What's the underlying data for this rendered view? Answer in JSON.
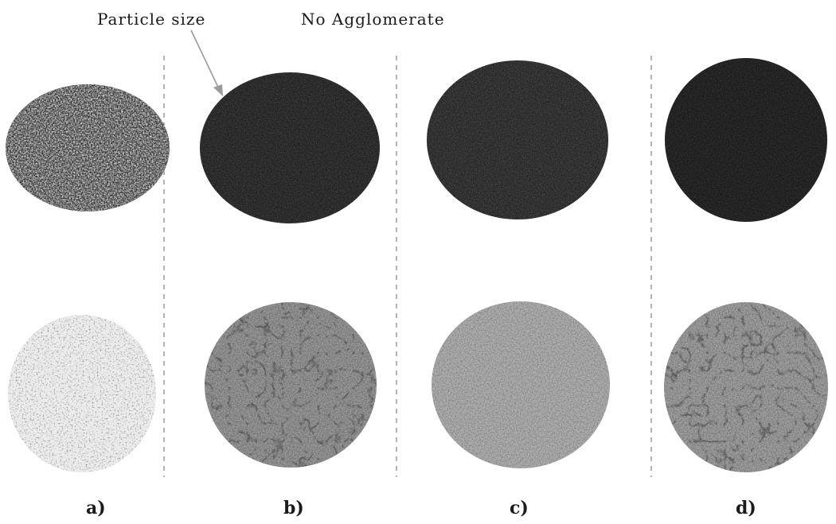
{
  "annotations": {
    "particle_size": "Particle size",
    "no_agglomerate": "No Agglomerate"
  },
  "panels": [
    {
      "label": "a)",
      "top_tone": "speckled-dark",
      "bottom_tone": "speckled-light"
    },
    {
      "label": "b)",
      "top_tone": "dark",
      "bottom_tone": "medium-grey"
    },
    {
      "label": "c)",
      "top_tone": "dark",
      "bottom_tone": "light-grey"
    },
    {
      "label": "d)",
      "top_tone": "darkest",
      "bottom_tone": "medium-grey"
    }
  ],
  "colors": {
    "divider": "#9a9a9a",
    "text": "#1a1a1a",
    "arrow": "#9a9a9a"
  }
}
